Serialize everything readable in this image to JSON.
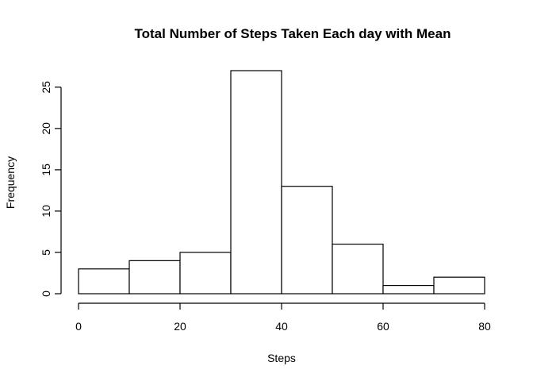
{
  "chart_data": {
    "type": "bar",
    "subtype": "histogram",
    "title": "Total Number of Steps Taken Each day with Mean",
    "xlabel": "Steps",
    "ylabel": "Frequency",
    "bins": [
      {
        "start": 0,
        "end": 10,
        "count": 3
      },
      {
        "start": 10,
        "end": 20,
        "count": 4
      },
      {
        "start": 20,
        "end": 30,
        "count": 5
      },
      {
        "start": 30,
        "end": 40,
        "count": 27
      },
      {
        "start": 40,
        "end": 50,
        "count": 13
      },
      {
        "start": 50,
        "end": 60,
        "count": 6
      },
      {
        "start": 60,
        "end": 70,
        "count": 1
      },
      {
        "start": 70,
        "end": 80,
        "count": 2
      }
    ],
    "xlim": [
      0,
      80
    ],
    "ylim": [
      0,
      27
    ],
    "x_ticks": [
      0,
      20,
      40,
      60,
      80
    ],
    "y_ticks": [
      0,
      5,
      10,
      15,
      20,
      25
    ],
    "grid": false,
    "legend": "none",
    "colors": {
      "bar_fill": "#ffffff",
      "bar_stroke": "#000000",
      "axis": "#000000"
    }
  }
}
